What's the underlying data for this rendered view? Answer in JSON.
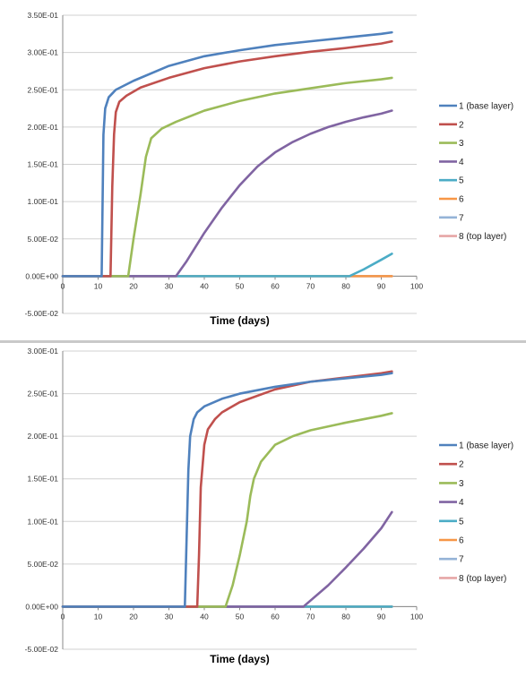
{
  "chart_data": [
    {
      "type": "line",
      "title": "",
      "xlabel": "Time (days)",
      "ylabel": "",
      "xlim": [
        0,
        100
      ],
      "ylim": [
        -0.05,
        0.35
      ],
      "x_ticks": [
        "0",
        "10",
        "20",
        "30",
        "40",
        "50",
        "60",
        "70",
        "80",
        "90",
        "100"
      ],
      "y_ticks": [
        "-5.00E-02",
        "0.00E+00",
        "5.00E-02",
        "1.00E-01",
        "1.50E-01",
        "2.00E-01",
        "2.50E-01",
        "3.00E-01",
        "3.50E-01"
      ],
      "grid": "horizontal",
      "legend_position": "right",
      "series": [
        {
          "name": "1 (base layer)",
          "color": "#4f81bd",
          "x": [
            0,
            11,
            11.5,
            12,
            13,
            15,
            20,
            30,
            40,
            50,
            60,
            70,
            80,
            90,
            93
          ],
          "y": [
            0,
            0,
            0.19,
            0.225,
            0.24,
            0.25,
            0.262,
            0.282,
            0.295,
            0.303,
            0.31,
            0.315,
            0.32,
            0.325,
            0.327
          ]
        },
        {
          "name": "2",
          "color": "#c0504d",
          "x": [
            0,
            13.5,
            14,
            14.5,
            15,
            16,
            18,
            22,
            30,
            40,
            50,
            60,
            70,
            80,
            90,
            93
          ],
          "y": [
            0,
            0,
            0.12,
            0.19,
            0.22,
            0.234,
            0.242,
            0.253,
            0.266,
            0.279,
            0.288,
            0.295,
            0.301,
            0.306,
            0.312,
            0.315
          ]
        },
        {
          "name": "3",
          "color": "#9bbb59",
          "x": [
            0,
            18.5,
            20,
            22,
            23.5,
            25,
            28,
            32,
            40,
            50,
            60,
            70,
            80,
            90,
            93
          ],
          "y": [
            0,
            0,
            0.05,
            0.11,
            0.16,
            0.185,
            0.198,
            0.207,
            0.222,
            0.235,
            0.245,
            0.252,
            0.259,
            0.264,
            0.266
          ]
        },
        {
          "name": "4",
          "color": "#8064a2",
          "x": [
            0,
            32,
            35,
            40,
            45,
            50,
            55,
            60,
            65,
            70,
            75,
            80,
            85,
            90,
            93
          ],
          "y": [
            0,
            0,
            0.02,
            0.058,
            0.092,
            0.122,
            0.147,
            0.166,
            0.18,
            0.191,
            0.2,
            0.207,
            0.213,
            0.218,
            0.222
          ]
        },
        {
          "name": "5",
          "color": "#4bacc6",
          "x": [
            0,
            81,
            85,
            90,
            93
          ],
          "y": [
            0,
            0,
            0.009,
            0.022,
            0.03
          ]
        },
        {
          "name": "6",
          "color": "#f79646",
          "x": [
            0,
            93
          ],
          "y": [
            0,
            0
          ]
        },
        {
          "name": "7",
          "color": "#95b3d7",
          "x": [
            0,
            93
          ],
          "y": [
            0,
            0
          ]
        },
        {
          "name": "8 (top layer)",
          "color": "#e6a6a6",
          "x": [
            0,
            93
          ],
          "y": [
            0,
            0
          ]
        }
      ]
    },
    {
      "type": "line",
      "title": "",
      "xlabel": "Time (days)",
      "ylabel": "",
      "xlim": [
        0,
        100
      ],
      "ylim": [
        -0.05,
        0.3
      ],
      "x_ticks": [
        "0",
        "10",
        "20",
        "30",
        "40",
        "50",
        "60",
        "70",
        "80",
        "90",
        "100"
      ],
      "y_ticks": [
        "-5.00E-02",
        "0.00E+00",
        "5.00E-02",
        "1.00E-01",
        "1.50E-01",
        "2.00E-01",
        "2.50E-01",
        "3.00E-01"
      ],
      "grid": "horizontal",
      "legend_position": "right",
      "series": [
        {
          "name": "1 (base layer)",
          "color": "#4f81bd",
          "x": [
            0,
            34.5,
            35,
            35.5,
            36,
            37,
            38,
            40,
            45,
            50,
            60,
            70,
            80,
            90,
            93
          ],
          "y": [
            0,
            0,
            0.08,
            0.16,
            0.2,
            0.22,
            0.228,
            0.235,
            0.244,
            0.25,
            0.258,
            0.264,
            0.268,
            0.272,
            0.274
          ]
        },
        {
          "name": "2",
          "color": "#c0504d",
          "x": [
            0,
            38,
            38.5,
            39,
            40,
            41,
            43,
            45,
            50,
            60,
            70,
            80,
            90,
            93
          ],
          "y": [
            0,
            0,
            0.06,
            0.14,
            0.19,
            0.208,
            0.22,
            0.228,
            0.24,
            0.255,
            0.264,
            0.269,
            0.274,
            0.276
          ]
        },
        {
          "name": "3",
          "color": "#9bbb59",
          "x": [
            0,
            46,
            48,
            50,
            52,
            53,
            54,
            56,
            60,
            65,
            70,
            80,
            90,
            93
          ],
          "y": [
            0,
            0,
            0.025,
            0.06,
            0.1,
            0.13,
            0.15,
            0.17,
            0.19,
            0.2,
            0.207,
            0.216,
            0.224,
            0.227
          ]
        },
        {
          "name": "4",
          "color": "#8064a2",
          "x": [
            0,
            68,
            75,
            80,
            85,
            90,
            93
          ],
          "y": [
            0,
            0,
            0.025,
            0.046,
            0.068,
            0.092,
            0.111
          ]
        },
        {
          "name": "5",
          "color": "#4bacc6",
          "x": [
            0,
            93
          ],
          "y": [
            0,
            0
          ]
        },
        {
          "name": "6",
          "color": "#f79646",
          "x": [
            0,
            93
          ],
          "y": [
            0,
            0
          ]
        },
        {
          "name": "7",
          "color": "#95b3d7",
          "x": [
            0,
            93
          ],
          "y": [
            0,
            0
          ]
        },
        {
          "name": "8 (top layer)",
          "color": "#e6a6a6",
          "x": [
            0,
            93
          ],
          "y": [
            0,
            0
          ]
        }
      ]
    }
  ]
}
